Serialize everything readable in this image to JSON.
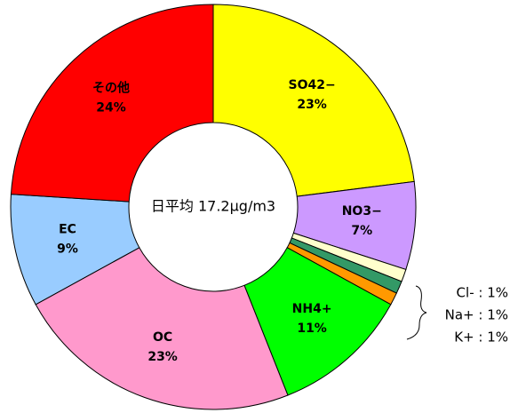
{
  "chart_data": {
    "type": "donut",
    "center_label": "日平均 17.2μg/m3",
    "categories": [
      "SO42−",
      "NO3−",
      "Cl-",
      "Na+",
      "K+",
      "NH4+",
      "OC",
      "EC",
      "その他"
    ],
    "values": [
      23,
      7,
      1,
      1,
      1,
      11,
      23,
      9,
      24
    ],
    "value_labels": [
      "23%",
      "7%",
      "Cl- : 1%",
      "Na+ : 1%",
      "K+ : 1%",
      "11%",
      "23%",
      "9%",
      "24%"
    ],
    "colors": [
      "#ffff00",
      "#cc99ff",
      "#ffffcc",
      "#339966",
      "#ff9900",
      "#00ff00",
      "#ff99cc",
      "#99ccff",
      "#ff0000"
    ]
  }
}
